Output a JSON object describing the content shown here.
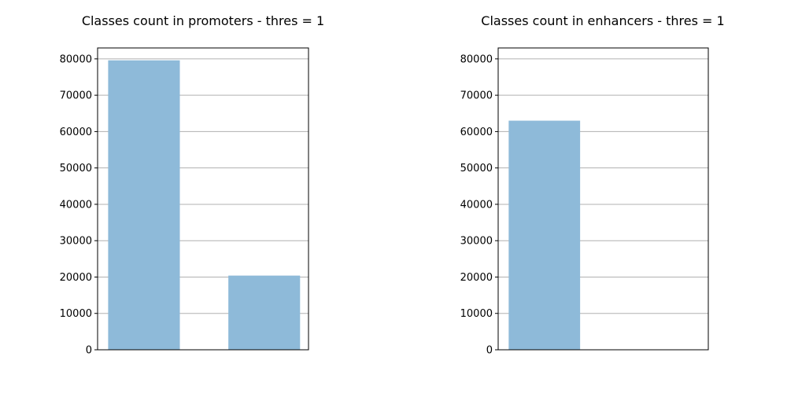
{
  "chart_data": [
    {
      "type": "bar",
      "title": "Classes count in promoters - thres = 1",
      "categories": [
        "",
        ""
      ],
      "values": [
        79600,
        20400
      ],
      "xlabel": "",
      "ylabel": "",
      "ylim": [
        0,
        83000
      ],
      "yticks": [
        0,
        10000,
        20000,
        30000,
        40000,
        50000,
        60000,
        70000,
        80000
      ],
      "ytick_labels": [
        "0",
        "10000",
        "20000",
        "30000",
        "40000",
        "50000",
        "60000",
        "70000",
        "80000"
      ],
      "grid": "y",
      "bar_color": "#8ebad9"
    },
    {
      "type": "bar",
      "title": "Classes count in enhancers - thres = 1",
      "categories": [
        "",
        ""
      ],
      "values": [
        63000,
        100
      ],
      "xlabel": "",
      "ylabel": "",
      "ylim": [
        0,
        83000
      ],
      "yticks": [
        0,
        10000,
        20000,
        30000,
        40000,
        50000,
        60000,
        70000,
        80000
      ],
      "ytick_labels": [
        "0",
        "10000",
        "20000",
        "30000",
        "40000",
        "50000",
        "60000",
        "70000",
        "80000"
      ],
      "grid": "y",
      "bar_color": "#8ebad9"
    }
  ]
}
